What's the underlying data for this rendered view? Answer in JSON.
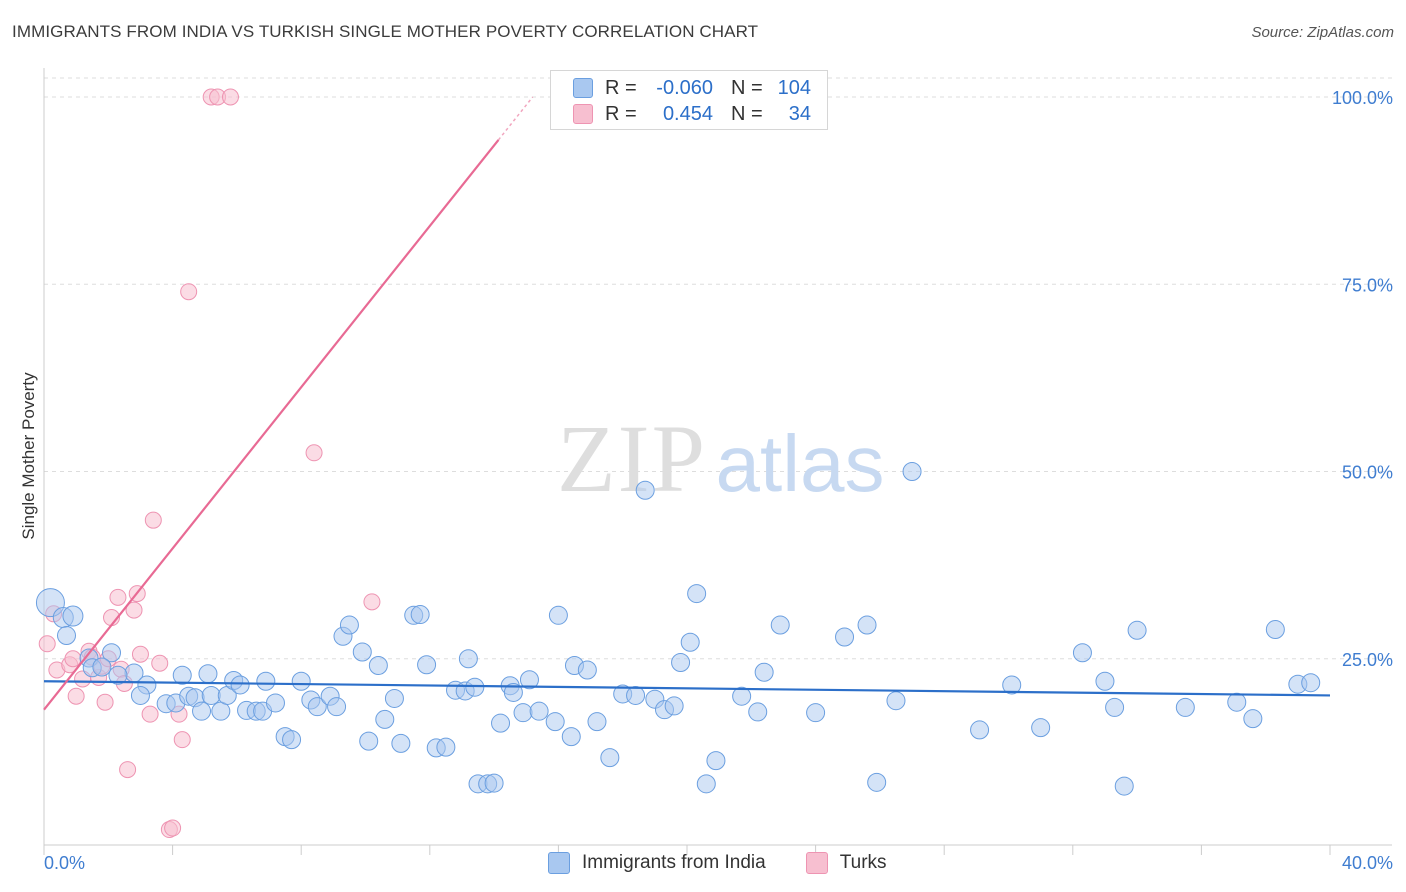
{
  "header": {
    "title": "IMMIGRANTS FROM INDIA VS TURKISH SINGLE MOTHER POVERTY CORRELATION CHART",
    "source": "Source: ZipAtlas.com"
  },
  "watermark": {
    "zip": "ZIP",
    "atlas": "atlas"
  },
  "legend": {
    "rows": [
      {
        "r_label": "R = ",
        "r_value": "-0.060",
        "n_label": "N = ",
        "n_value": "104"
      },
      {
        "r_label": "R = ",
        "r_value": "0.454",
        "n_label": "N = ",
        "n_value": "34"
      }
    ]
  },
  "bottom_legend": {
    "india": "Immigrants from India",
    "turks": "Turks"
  },
  "colors": {
    "india_fill": "#a9c8f0",
    "india_stroke": "#6b9fe0",
    "india_line": "#2c6fc9",
    "turks_fill": "#f7bfd0",
    "turks_stroke": "#ee94b2",
    "turks_line": "#e86a94",
    "axis_text": "#3f7dd0",
    "grid": "#dddddd"
  },
  "chart_data": {
    "type": "scatter",
    "title": "IMMIGRANTS FROM INDIA VS TURKISH SINGLE MOTHER POVERTY CORRELATION CHART",
    "xlabel": "",
    "ylabel": "Single Mother Poverty",
    "xlim": [
      0,
      40
    ],
    "ylim": [
      0,
      105
    ],
    "x_tick_labels": [
      "0.0%",
      "40.0%"
    ],
    "y_ticks": [
      25,
      50,
      75,
      100
    ],
    "y_tick_labels": [
      "25.0%",
      "50.0%",
      "75.0%",
      "100.0%"
    ],
    "series": [
      {
        "name": "Immigrants from India",
        "r": -0.06,
        "n": 104,
        "trend": {
          "x": [
            0,
            40
          ],
          "y": [
            22,
            20.1
          ]
        },
        "points": [
          [
            0.2,
            32.5
          ],
          [
            0.6,
            30.5
          ],
          [
            0.9,
            30.7
          ],
          [
            0.7,
            28.1
          ],
          [
            1.4,
            25.1
          ],
          [
            2.1,
            25.8
          ],
          [
            1.5,
            23.8
          ],
          [
            2.8,
            23.1
          ],
          [
            1.8,
            23.9
          ],
          [
            2.3,
            22.8
          ],
          [
            3.2,
            21.5
          ],
          [
            3.0,
            20.1
          ],
          [
            3.8,
            19.0
          ],
          [
            4.1,
            19.1
          ],
          [
            4.3,
            22.8
          ],
          [
            4.5,
            20.0
          ],
          [
            4.7,
            19.8
          ],
          [
            4.9,
            18.0
          ],
          [
            5.1,
            23.0
          ],
          [
            5.2,
            20.1
          ],
          [
            5.5,
            18.0
          ],
          [
            5.7,
            20.1
          ],
          [
            5.9,
            22.1
          ],
          [
            6.1,
            21.5
          ],
          [
            6.3,
            18.1
          ],
          [
            6.6,
            18.0
          ],
          [
            6.8,
            18.0
          ],
          [
            6.9,
            22.0
          ],
          [
            7.2,
            19.1
          ],
          [
            7.5,
            14.6
          ],
          [
            7.7,
            14.2
          ],
          [
            8.0,
            22.0
          ],
          [
            8.3,
            19.5
          ],
          [
            8.5,
            18.6
          ],
          [
            8.9,
            20.0
          ],
          [
            9.1,
            18.6
          ],
          [
            9.3,
            28.0
          ],
          [
            9.5,
            29.5
          ],
          [
            9.9,
            25.9
          ],
          [
            10.1,
            14.0
          ],
          [
            10.4,
            24.1
          ],
          [
            10.6,
            16.9
          ],
          [
            10.9,
            19.7
          ],
          [
            11.1,
            13.7
          ],
          [
            11.5,
            30.8
          ],
          [
            11.7,
            30.9
          ],
          [
            11.9,
            24.2
          ],
          [
            12.2,
            13.1
          ],
          [
            12.5,
            13.2
          ],
          [
            12.8,
            20.8
          ],
          [
            13.1,
            20.7
          ],
          [
            13.2,
            25.0
          ],
          [
            13.4,
            21.2
          ],
          [
            13.5,
            8.3
          ],
          [
            13.8,
            8.3
          ],
          [
            14.0,
            8.4
          ],
          [
            14.2,
            16.4
          ],
          [
            14.5,
            21.4
          ],
          [
            14.6,
            20.5
          ],
          [
            14.9,
            17.8
          ],
          [
            15.1,
            22.2
          ],
          [
            15.4,
            18.0
          ],
          [
            15.9,
            16.6
          ],
          [
            16.0,
            30.8
          ],
          [
            16.4,
            14.6
          ],
          [
            16.5,
            24.1
          ],
          [
            16.9,
            23.5
          ],
          [
            17.2,
            16.6
          ],
          [
            17.6,
            11.8
          ],
          [
            18.0,
            20.3
          ],
          [
            18.4,
            20.1
          ],
          [
            18.7,
            47.5
          ],
          [
            19.0,
            19.6
          ],
          [
            19.3,
            18.2
          ],
          [
            19.6,
            18.7
          ],
          [
            19.8,
            24.5
          ],
          [
            20.1,
            27.2
          ],
          [
            20.3,
            33.7
          ],
          [
            20.6,
            8.3
          ],
          [
            20.9,
            11.4
          ],
          [
            21.7,
            20.0
          ],
          [
            22.2,
            17.9
          ],
          [
            22.4,
            23.2
          ],
          [
            22.9,
            29.5
          ],
          [
            24.0,
            17.8
          ],
          [
            24.9,
            27.9
          ],
          [
            25.6,
            29.5
          ],
          [
            25.9,
            8.5
          ],
          [
            26.5,
            19.4
          ],
          [
            27.0,
            50.0
          ],
          [
            29.1,
            15.5
          ],
          [
            30.1,
            21.5
          ],
          [
            31.0,
            15.8
          ],
          [
            32.3,
            25.8
          ],
          [
            33.0,
            22.0
          ],
          [
            33.3,
            18.5
          ],
          [
            33.6,
            8.0
          ],
          [
            34.0,
            28.8
          ],
          [
            35.5,
            18.5
          ],
          [
            37.1,
            19.2
          ],
          [
            37.6,
            17.0
          ],
          [
            38.3,
            28.9
          ],
          [
            39.0,
            21.6
          ],
          [
            39.4,
            21.8
          ]
        ]
      },
      {
        "name": "Turks",
        "r": 0.454,
        "n": 34,
        "trend": {
          "x": [
            0,
            15.2
          ],
          "y": [
            18.2,
            100
          ]
        },
        "points": [
          [
            0.1,
            27.0
          ],
          [
            0.3,
            31.0
          ],
          [
            0.4,
            23.5
          ],
          [
            0.8,
            24.2
          ],
          [
            0.9,
            25.0
          ],
          [
            1.0,
            20.0
          ],
          [
            1.2,
            22.3
          ],
          [
            1.4,
            26.0
          ],
          [
            1.5,
            25.2
          ],
          [
            1.7,
            22.5
          ],
          [
            1.8,
            24.0
          ],
          [
            1.9,
            19.2
          ],
          [
            2.0,
            25.0
          ],
          [
            2.1,
            30.5
          ],
          [
            2.3,
            33.2
          ],
          [
            2.4,
            23.6
          ],
          [
            2.5,
            21.7
          ],
          [
            2.6,
            10.2
          ],
          [
            2.8,
            31.5
          ],
          [
            2.9,
            33.7
          ],
          [
            3.0,
            25.6
          ],
          [
            3.3,
            17.6
          ],
          [
            3.4,
            43.5
          ],
          [
            3.6,
            24.4
          ],
          [
            3.9,
            2.2
          ],
          [
            4.0,
            2.4
          ],
          [
            4.2,
            17.6
          ],
          [
            4.3,
            14.2
          ],
          [
            4.5,
            74.0
          ],
          [
            5.2,
            100.0
          ],
          [
            5.4,
            100.0
          ],
          [
            5.8,
            100.0
          ],
          [
            8.4,
            52.5
          ],
          [
            10.2,
            32.6
          ]
        ]
      }
    ]
  }
}
